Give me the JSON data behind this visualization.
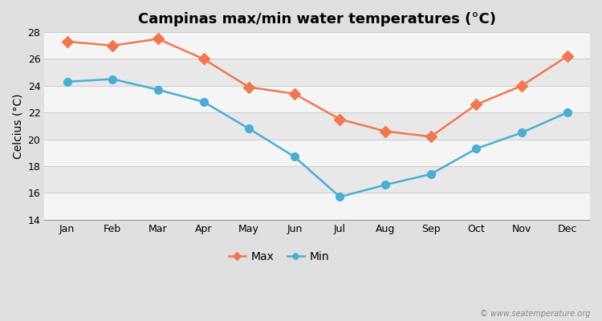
{
  "title": "Campinas max/min water temperatures (°C)",
  "ylabel": "Celcius (°C)",
  "months": [
    "Jan",
    "Feb",
    "Mar",
    "Apr",
    "May",
    "Jun",
    "Jul",
    "Aug",
    "Sep",
    "Oct",
    "Nov",
    "Dec"
  ],
  "max_values": [
    27.3,
    27.0,
    27.5,
    26.0,
    23.9,
    23.4,
    21.5,
    20.6,
    20.2,
    22.6,
    24.0,
    26.2
  ],
  "min_values": [
    24.3,
    24.5,
    23.7,
    22.8,
    20.8,
    18.7,
    15.7,
    16.6,
    17.4,
    19.3,
    20.5,
    22.0
  ],
  "max_color": "#f07850",
  "min_color": "#4aaed4",
  "fig_bg_color": "#e0e0e0",
  "plot_bg_color": "#f0f0f0",
  "band_color_light": "#f5f5f5",
  "band_color_dark": "#e8e8e8",
  "ylim": [
    14,
    28
  ],
  "yticks": [
    14,
    16,
    18,
    20,
    22,
    24,
    26,
    28
  ],
  "watermark": "© www.seatemperature.org",
  "legend_max": "Max",
  "legend_min": "Min",
  "max_marker": "D",
  "min_marker": "o",
  "marker_size": 7,
  "line_width": 1.8,
  "title_fontsize": 13,
  "label_fontsize": 10,
  "tick_fontsize": 9,
  "figsize": [
    7.5,
    4.0
  ],
  "dpi": 100
}
